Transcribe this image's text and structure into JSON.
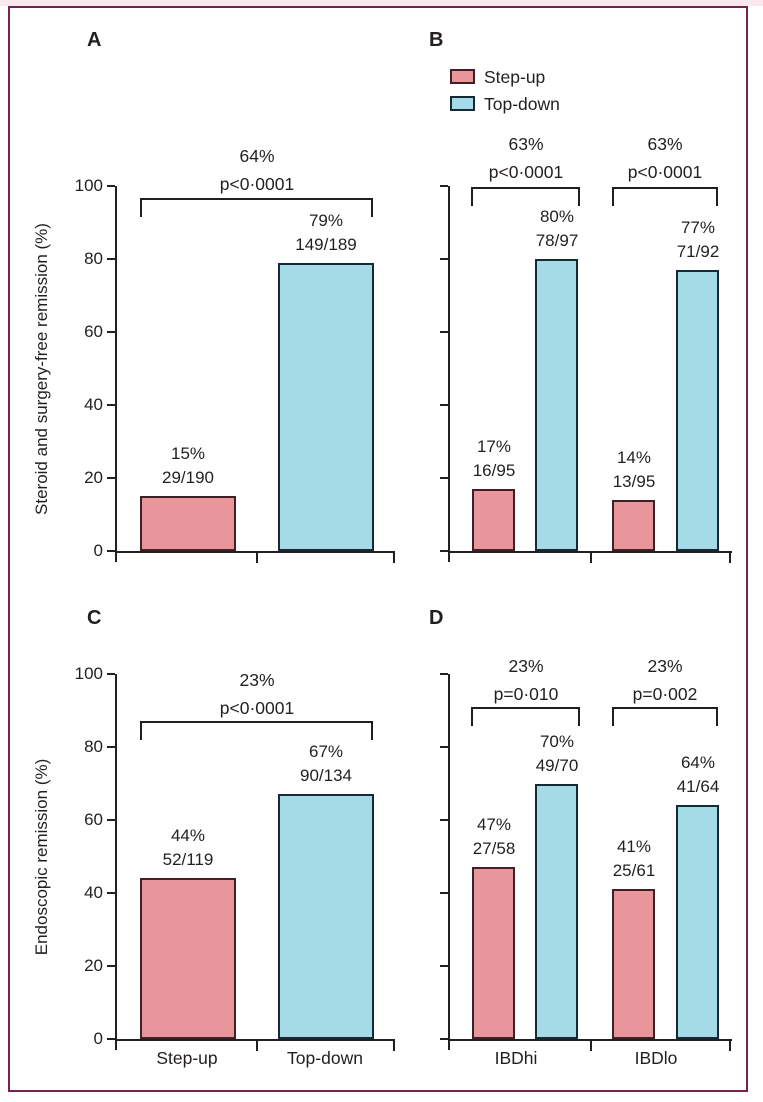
{
  "colors": {
    "step_up_fill": "#E8959C",
    "step_up_stroke": "#3F2025",
    "top_down_fill": "#A5DBE7",
    "top_down_stroke": "#152A36",
    "frame": "#75224E",
    "top_strip": "#F9E9EF",
    "text": "#231F20"
  },
  "legend": {
    "items": [
      {
        "label": "Step-up"
      },
      {
        "label": "Top-down"
      }
    ]
  },
  "chart_data": [
    {
      "panel": "A",
      "type": "bar",
      "ylabel": "Steroid and surgery-free remission (%)",
      "ylim": [
        0,
        100
      ],
      "yticks": [
        100,
        80,
        60,
        40,
        20,
        0
      ],
      "xcats": [],
      "comparisons": [
        {
          "diff": "64%",
          "p": "p<0·0001"
        }
      ],
      "bars": [
        {
          "series": "Step-up",
          "pct": 15,
          "pct_label": "15%",
          "count": "29/190"
        },
        {
          "series": "Top-down",
          "pct": 79,
          "pct_label": "79%",
          "count": "149/189"
        }
      ]
    },
    {
      "panel": "B",
      "type": "bar",
      "ylabel": "",
      "ylim": [
        0,
        100
      ],
      "yticks": [],
      "xcats": [],
      "comparisons": [
        {
          "diff": "63%",
          "p": "p<0·0001"
        },
        {
          "diff": "63%",
          "p": "p<0·0001"
        }
      ],
      "bars": [
        {
          "series": "Step-up",
          "pct": 17,
          "pct_label": "17%",
          "count": "16/95"
        },
        {
          "series": "Top-down",
          "pct": 80,
          "pct_label": "80%",
          "count": "78/97"
        },
        {
          "series": "Step-up",
          "pct": 14,
          "pct_label": "14%",
          "count": "13/95"
        },
        {
          "series": "Top-down",
          "pct": 77,
          "pct_label": "77%",
          "count": "71/92"
        }
      ]
    },
    {
      "panel": "C",
      "type": "bar",
      "ylabel": "Endoscopic remission (%)",
      "ylim": [
        0,
        100
      ],
      "yticks": [
        100,
        80,
        60,
        40,
        20,
        0
      ],
      "xcats": [
        "Step-up",
        "Top-down"
      ],
      "comparisons": [
        {
          "diff": "23%",
          "p": "p<0·0001"
        }
      ],
      "bars": [
        {
          "series": "Step-up",
          "pct": 44,
          "pct_label": "44%",
          "count": "52/119"
        },
        {
          "series": "Top-down",
          "pct": 67,
          "pct_label": "67%",
          "count": "90/134"
        }
      ]
    },
    {
      "panel": "D",
      "type": "bar",
      "ylabel": "",
      "ylim": [
        0,
        100
      ],
      "yticks": [],
      "xcats": [
        "IBDhi",
        "IBDlo"
      ],
      "comparisons": [
        {
          "diff": "23%",
          "p": "p=0·010"
        },
        {
          "diff": "23%",
          "p": "p=0·002"
        }
      ],
      "bars": [
        {
          "series": "Step-up",
          "pct": 47,
          "pct_label": "47%",
          "count": "27/58"
        },
        {
          "series": "Top-down",
          "pct": 70,
          "pct_label": "70%",
          "count": "49/70"
        },
        {
          "series": "Step-up",
          "pct": 41,
          "pct_label": "41%",
          "count": "25/61"
        },
        {
          "series": "Top-down",
          "pct": 64,
          "pct_label": "64%",
          "count": "41/64"
        }
      ]
    }
  ]
}
